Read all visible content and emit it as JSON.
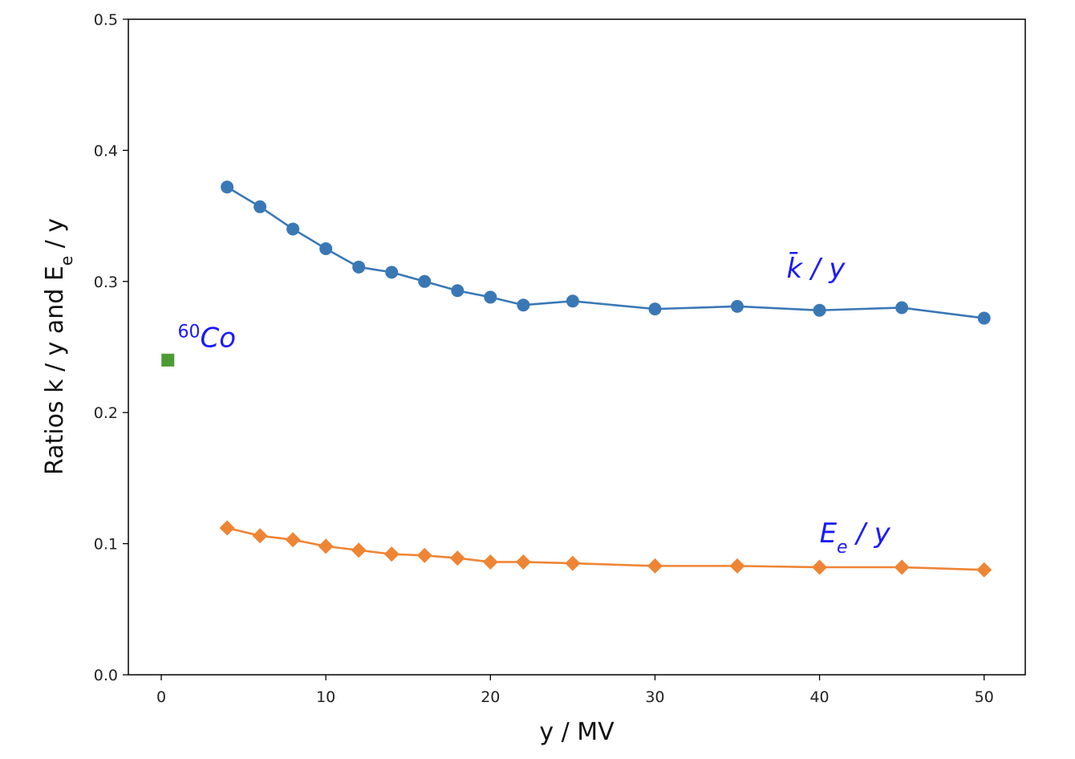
{
  "chart_data": {
    "type": "line",
    "title": "",
    "xlabel": "y / MV",
    "ylabel": "Ratios k / y and E_e / y",
    "xlim": [
      -2,
      52.5
    ],
    "ylim": [
      0,
      0.5
    ],
    "x_ticks": [
      0,
      10,
      20,
      30,
      40,
      50
    ],
    "x_tick_labels": [
      "0",
      "10",
      "20",
      "30",
      "40",
      "50"
    ],
    "y_ticks": [
      0.0,
      0.1,
      0.2,
      0.3,
      0.4,
      0.5
    ],
    "y_tick_labels": [
      "0.0",
      "0.1",
      "0.2",
      "0.3",
      "0.4",
      "0.5"
    ],
    "grid": false,
    "legend": "none",
    "series": [
      {
        "marker": "circle",
        "color": "#3a78b5",
        "x": [
          4,
          6,
          8,
          10,
          12,
          14,
          16,
          18,
          20,
          22,
          25,
          30,
          35,
          40,
          45,
          50
        ],
        "y": [
          0.372,
          0.357,
          0.34,
          0.325,
          0.311,
          0.307,
          0.3,
          0.293,
          0.288,
          0.282,
          0.285,
          0.279,
          0.281,
          0.278,
          0.28,
          0.272
        ]
      },
      {
        "marker": "diamond",
        "color": "#ee8534",
        "x": [
          4,
          6,
          8,
          10,
          12,
          14,
          16,
          18,
          20,
          22,
          25,
          30,
          35,
          40,
          45,
          50
        ],
        "y": [
          0.112,
          0.106,
          0.103,
          0.098,
          0.095,
          0.092,
          0.091,
          0.089,
          0.086,
          0.086,
          0.085,
          0.083,
          0.083,
          0.082,
          0.082,
          0.08
        ]
      },
      {
        "marker": "square",
        "color": "#4d9a34",
        "x": [
          0.4
        ],
        "y": [
          0.24
        ]
      }
    ],
    "annotations": [
      {
        "text": "k̄ / y",
        "x": 38,
        "y": 0.303,
        "color": "#1a1aff"
      },
      {
        "text": "E",
        "sub": "e",
        "suffix": " / y",
        "x": 40,
        "y": 0.101,
        "color": "#1a1aff"
      },
      {
        "sup": "60",
        "text": "Co",
        "x": 1,
        "y": 0.25,
        "color": "#1a1aff"
      }
    ]
  }
}
